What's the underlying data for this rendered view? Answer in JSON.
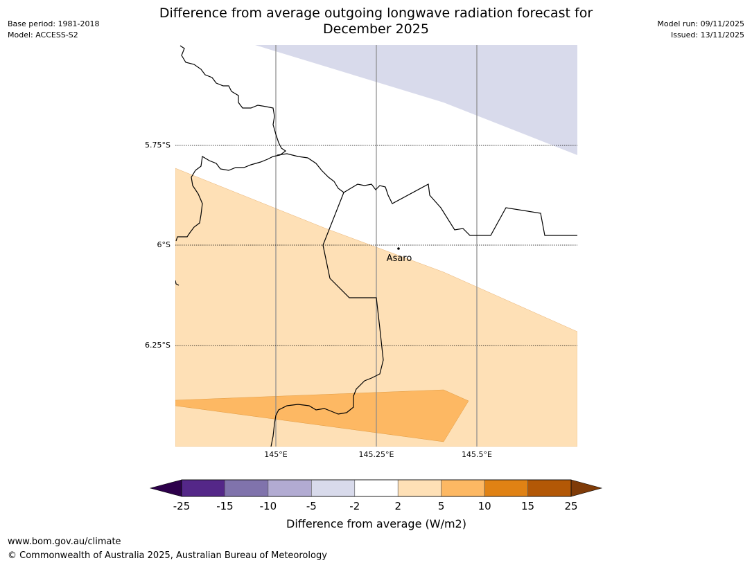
{
  "title_line1": "Difference from average outgoing longwave radiation forecast for",
  "title_line2": "December 2025",
  "meta_left": {
    "base_period": "Base period: 1981-2018",
    "model": "Model: ACCESS-S2"
  },
  "meta_right": {
    "model_run": "Model run: 09/11/2025",
    "issued": "Issued: 13/11/2025"
  },
  "map": {
    "lat_labels": [
      "5.75°S",
      "6°S",
      "6.25°S"
    ],
    "lon_labels": [
      "145°E",
      "145.25°E",
      "145.5°E"
    ],
    "place": {
      "name": "Asaro"
    }
  },
  "colorbar": {
    "tick_labels": [
      "-25",
      "-15",
      "-10",
      "-5",
      "-2",
      "2",
      "5",
      "10",
      "15",
      "25"
    ],
    "colors": [
      "#2d004b",
      "#542788",
      "#8073ac",
      "#b2abd2",
      "#d8daeb",
      "#ffffff",
      "#fee0b6",
      "#fdb863",
      "#e08214",
      "#b35806",
      "#7f3b08"
    ],
    "label": "Difference from average (W/m2)"
  },
  "footer": {
    "url": "www.bom.gov.au/climate",
    "copyright": "© Commonwealth of Australia 2025, Australian Bureau of Meteorology"
  }
}
